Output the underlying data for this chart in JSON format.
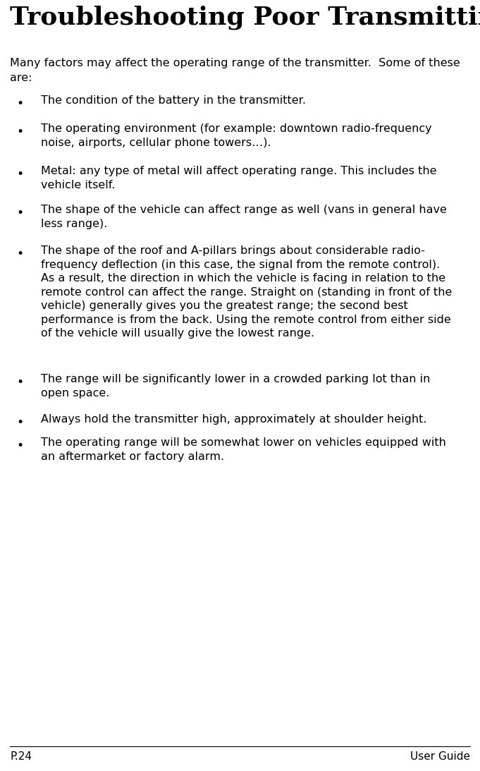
{
  "title": "Troubleshooting Poor Transmitting Range",
  "intro_line1": "Many factors may affect the operating range of the transmitter.  Some of these",
  "intro_line2": "are:",
  "bullet_points": [
    "The condition of the battery in the transmitter.",
    "The operating environment (for example: downtown radio-frequency\nnoise, airports, cellular phone towers…).",
    "Metal: any type of metal will affect operating range. This includes the\nvehicle itself.",
    "The shape of the vehicle can affect range as well (vans in general have\nless range).",
    "The shape of the roof and A-pillars brings about considerable radio-\nfrequency deflection (in this case, the signal from the remote control).\nAs a result, the direction in which the vehicle is facing in relation to the\nremote control can affect the range. Straight on (standing in front of the\nvehicle) generally gives you the greatest range; the second best\nperformance is from the back. Using the remote control from either side\nof the vehicle will usually give the lowest range.",
    "The range will be significantly lower in a crowded parking lot than in\nopen space.",
    "Always hold the transmitter high, approximately at shoulder height.",
    "The operating range will be somewhat lower on vehicles equipped with\nan aftermarket or factory alarm."
  ],
  "footer_left": "P.24",
  "footer_right": "User Guide",
  "bg_color": "#ffffff",
  "text_color": "#000000",
  "title_fontsize": 26,
  "body_fontsize": 11.5,
  "footer_fontsize": 11
}
